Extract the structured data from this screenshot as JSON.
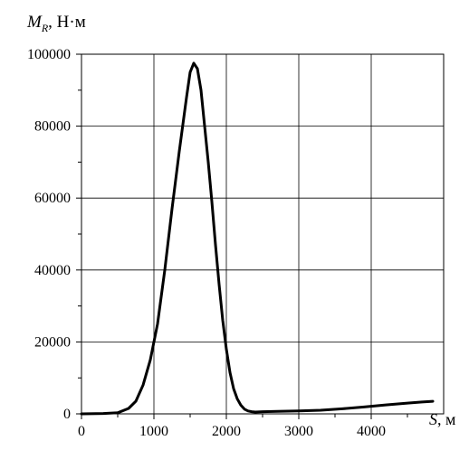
{
  "chart_data": {
    "type": "line",
    "title": "",
    "ylabel": {
      "symbol": "M",
      "subscript": "R",
      "unit": ", Н·м"
    },
    "xlabel": {
      "symbol": "S",
      "unit": ", м"
    },
    "xlim": [
      0,
      5000
    ],
    "ylim": [
      0,
      100000
    ],
    "x_ticks": [
      {
        "value": 0,
        "label": "0"
      },
      {
        "value": 1000,
        "label": "1000"
      },
      {
        "value": 2000,
        "label": "2000"
      },
      {
        "value": 3000,
        "label": "3000"
      },
      {
        "value": 4000,
        "label": "4000"
      }
    ],
    "y_ticks": [
      {
        "value": 0,
        "label": "0"
      },
      {
        "value": 20000,
        "label": "20000"
      },
      {
        "value": 40000,
        "label": "40000"
      },
      {
        "value": 60000,
        "label": "60000"
      },
      {
        "value": 80000,
        "label": "80000"
      },
      {
        "value": 100000,
        "label": "100000"
      }
    ],
    "grid": true,
    "series": [
      {
        "color": "#000000",
        "x": [
          0,
          300,
          500,
          650,
          750,
          850,
          950,
          1050,
          1150,
          1250,
          1350,
          1450,
          1500,
          1550,
          1600,
          1650,
          1700,
          1750,
          1800,
          1850,
          1900,
          1950,
          2000,
          2050,
          2100,
          2150,
          2200,
          2250,
          2300,
          2350,
          2400,
          2500,
          2700,
          3000,
          3300,
          3600,
          3900,
          4200,
          4500,
          4700,
          4850
        ],
        "y": [
          0,
          100,
          300,
          1500,
          3500,
          8000,
          15000,
          25000,
          40000,
          57000,
          73000,
          88000,
          95000,
          97500,
          96000,
          90000,
          80000,
          70000,
          59000,
          47000,
          36000,
          26000,
          18000,
          11500,
          7000,
          4200,
          2400,
          1300,
          800,
          600,
          500,
          600,
          700,
          800,
          1000,
          1400,
          1900,
          2500,
          3000,
          3300,
          3500
        ]
      }
    ]
  }
}
